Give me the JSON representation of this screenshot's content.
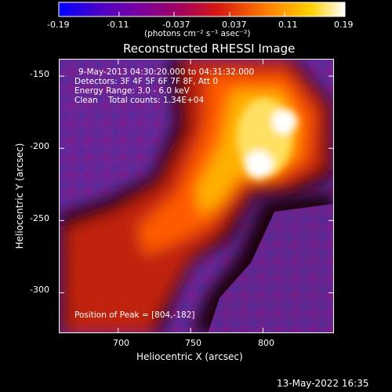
{
  "colorbar": {
    "ticks": [
      "-0.19",
      "-0.11",
      "-0.037",
      "0.037",
      "0.11",
      "0.19"
    ],
    "tick_values": [
      -0.19,
      -0.11,
      -0.037,
      0.037,
      0.11,
      0.19
    ],
    "range": [
      -0.19,
      0.19
    ],
    "units": "(photons cm⁻² s⁻¹ asec⁻²)",
    "gradient_colors": [
      "#0000ff",
      "#4a00c8",
      "#7a00a0",
      "#a00060",
      "#d81a10",
      "#ff7a00",
      "#ffd000",
      "#ffffff"
    ]
  },
  "plot": {
    "title": "Reconstructed RHESSI Image",
    "xlabel": "Heliocentric X (arcsec)",
    "ylabel": "Heliocentric Y (arcsec)",
    "xticks": [
      "700",
      "750",
      "800"
    ],
    "xtick_values": [
      700,
      750,
      800
    ],
    "yticks": [
      "-150",
      "-200",
      "-250",
      "-300"
    ],
    "ytick_values": [
      -150,
      -200,
      -250,
      -300
    ],
    "xlim": [
      659,
      849
    ],
    "ylim": [
      -328,
      -138
    ]
  },
  "info": {
    "date_line": "9-May-2013 04:30:20.000 to 04:31:32.000",
    "detectors_line": "Detectors: 3F 4F 5F 6F 7F 8F, Att 0",
    "energy_line": "Energy Range: 3.0 - 6.0 keV",
    "clean_line": "Clean    Total counts: 1.34E+04",
    "peak_line": "Position of Peak = [804,-182]"
  },
  "footer": {
    "timestamp": "13-May-2022 16:35"
  },
  "map_colors": {
    "background": "#000000",
    "low": "#6a1e96",
    "mid": "#d02818",
    "high": "#ffffff"
  }
}
